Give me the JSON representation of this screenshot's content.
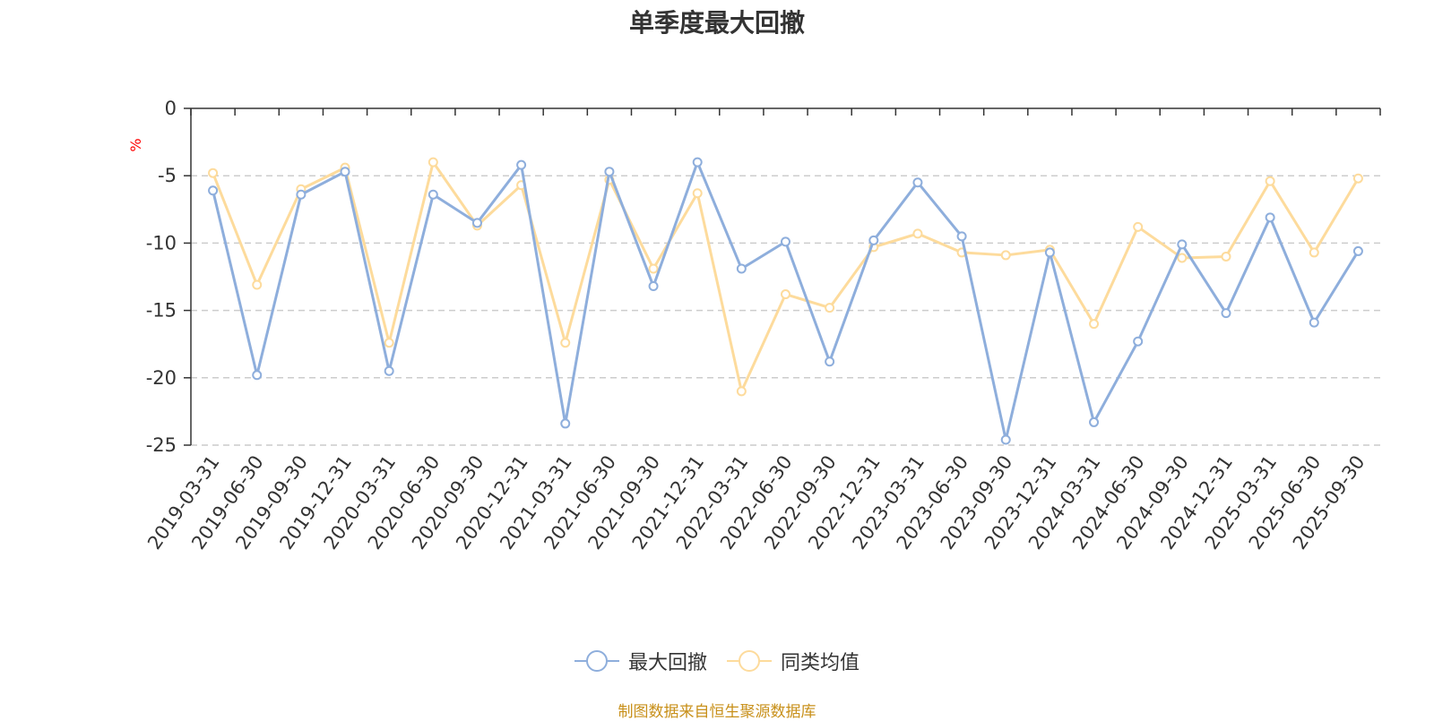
{
  "source_note": "制图数据来自恒生聚源数据库",
  "colors": {
    "series1": "#8eaedc",
    "series2": "#fddb9c",
    "axis": "#333333",
    "grid": "#cccccc",
    "unit": "#ff0000"
  },
  "chart_data": {
    "type": "line",
    "title": "单季度最大回撤",
    "ylabel": "%",
    "xlabel": "",
    "ylim": [
      -25,
      0
    ],
    "yticks": [
      0,
      -5,
      -10,
      -15,
      -20,
      -25
    ],
    "ytick_labels": [
      "0",
      "-5",
      "-10",
      "-15",
      "-20",
      "-25"
    ],
    "grid": "dashed horizontal",
    "legend_position": "bottom-center",
    "categories": [
      "2019-03-31",
      "2019-06-30",
      "2019-09-30",
      "2019-12-31",
      "2020-03-31",
      "2020-06-30",
      "2020-09-30",
      "2020-12-31",
      "2021-03-31",
      "2021-06-30",
      "2021-09-30",
      "2021-12-31",
      "2022-03-31",
      "2022-06-30",
      "2022-09-30",
      "2022-12-31",
      "2023-03-31",
      "2023-06-30",
      "2023-09-30",
      "2023-12-31",
      "2024-03-31",
      "2024-06-30",
      "2024-09-30",
      "2024-12-31",
      "2025-03-31",
      "2025-06-30",
      "2025-09-30"
    ],
    "series": [
      {
        "name": "最大回撤",
        "values": [
          -6.1,
          -19.8,
          -6.4,
          -4.7,
          -19.5,
          -6.4,
          -8.5,
          -4.2,
          -23.4,
          -4.7,
          -13.2,
          -4.0,
          -11.9,
          -9.9,
          -18.8,
          -9.8,
          -5.5,
          -9.5,
          -24.6,
          -10.7,
          -23.3,
          -17.3,
          -10.1,
          -15.2,
          -8.1,
          -15.9,
          -10.6
        ]
      },
      {
        "name": "同类均值",
        "values": [
          -4.8,
          -13.1,
          -6.0,
          -4.4,
          -17.4,
          -4.0,
          -8.7,
          -5.7,
          -17.4,
          -5.3,
          -11.9,
          -6.3,
          -21.0,
          -13.8,
          -14.8,
          -10.3,
          -9.3,
          -10.7,
          -10.9,
          -10.5,
          -16.0,
          -8.8,
          -11.1,
          -11.0,
          -5.4,
          -10.7,
          -5.2
        ]
      }
    ]
  }
}
